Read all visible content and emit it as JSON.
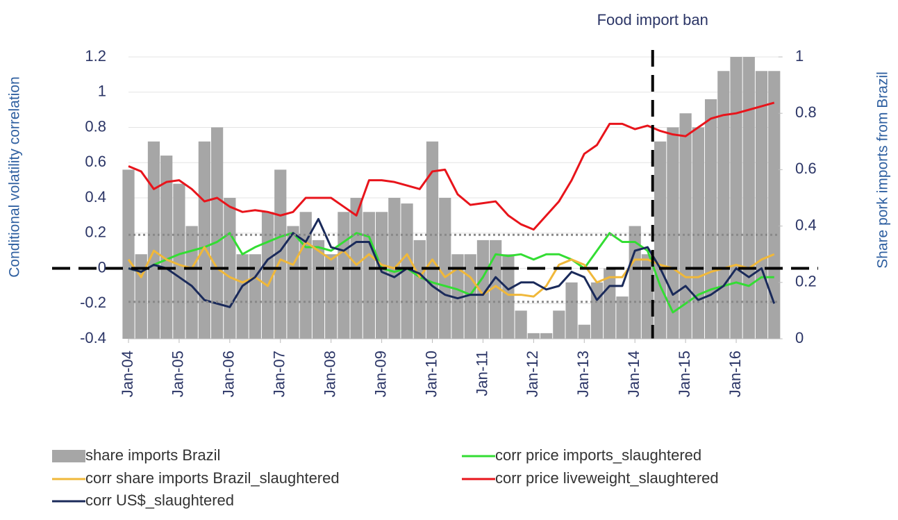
{
  "chart_data": {
    "type": "combo",
    "y_label": "Conditional volatility correlation",
    "y2_label": "Share pork imports from Brazil",
    "annotation": {
      "text": "Food import ban",
      "x": 41.4
    },
    "zero_line": true,
    "dotted_lines": [
      0.19,
      -0.19
    ],
    "grid": true,
    "legend": "bottom",
    "ylim": [
      -0.4,
      1.2
    ],
    "yticks": [
      -0.4,
      -0.2,
      0,
      0.2,
      0.4,
      0.6,
      0.8,
      1,
      1.2
    ],
    "y2lim": [
      0,
      1
    ],
    "y2ticks": [
      0,
      0.2,
      0.4,
      0.6,
      0.8,
      1
    ],
    "categories": [
      "Jan-04",
      null,
      null,
      null,
      "Jan-05",
      null,
      null,
      null,
      "Jan-06",
      null,
      null,
      null,
      "Jan-07",
      null,
      null,
      null,
      "Jan-08",
      null,
      null,
      null,
      "Jan-09",
      null,
      null,
      null,
      "Jan-10",
      null,
      null,
      null,
      "Jan-11",
      null,
      null,
      null,
      "Jan-12",
      null,
      null,
      null,
      "Jan-13",
      null,
      null,
      null,
      "Jan-14",
      null,
      null,
      null,
      "Jan-15",
      null,
      null,
      null,
      "Jan-16",
      null,
      null,
      null
    ],
    "series": [
      {
        "name": "share imports Brazil",
        "type": "bar",
        "axis": "y2",
        "color": "#a6a6a6",
        "values": [
          0.6,
          0.3,
          0.7,
          0.65,
          0.55,
          0.4,
          0.7,
          0.75,
          0.5,
          0.3,
          0.3,
          0.45,
          0.6,
          0.4,
          0.45,
          0.35,
          0.3,
          0.45,
          0.5,
          0.45,
          0.45,
          0.5,
          0.48,
          0.35,
          0.7,
          0.5,
          0.3,
          0.3,
          0.35,
          0.35,
          0.3,
          0.1,
          0.02,
          0.02,
          0.1,
          0.2,
          0.05,
          0.2,
          0.25,
          0.15,
          0.4,
          0.3,
          0.7,
          0.75,
          0.8,
          0.75,
          0.85,
          0.95,
          1.0,
          1.0,
          0.95,
          0.95
        ]
      },
      {
        "name": "corr price imports_slaughtered",
        "type": "line",
        "color": "#33dd33",
        "values": [
          0.0,
          -0.02,
          0.02,
          0.05,
          0.08,
          0.1,
          0.12,
          0.15,
          0.2,
          0.08,
          0.12,
          0.15,
          0.18,
          0.2,
          0.12,
          0.12,
          0.1,
          0.15,
          0.2,
          0.18,
          0.0,
          -0.02,
          0.0,
          -0.05,
          -0.08,
          -0.1,
          -0.12,
          -0.15,
          -0.05,
          0.08,
          0.07,
          0.08,
          0.05,
          0.08,
          0.08,
          0.05,
          0.0,
          0.1,
          0.2,
          0.15,
          0.15,
          0.1,
          -0.1,
          -0.25,
          -0.2,
          -0.15,
          -0.12,
          -0.1,
          -0.08,
          -0.1,
          -0.05,
          -0.05
        ]
      },
      {
        "name": "corr share imports Brazil_slaughtered",
        "type": "line",
        "color": "#f0b83a",
        "values": [
          0.05,
          -0.05,
          0.1,
          0.05,
          0.02,
          0.0,
          0.12,
          0.0,
          -0.05,
          -0.08,
          -0.05,
          -0.1,
          0.05,
          0.02,
          0.15,
          0.1,
          0.05,
          0.1,
          0.02,
          0.08,
          0.02,
          0.0,
          0.08,
          -0.05,
          0.05,
          -0.05,
          0.0,
          -0.05,
          -0.15,
          -0.1,
          -0.15,
          -0.15,
          -0.16,
          -0.1,
          0.02,
          0.05,
          0.02,
          -0.08,
          -0.05,
          -0.05,
          0.05,
          0.05,
          0.02,
          0.0,
          -0.05,
          -0.05,
          -0.02,
          0.0,
          0.02,
          0.0,
          0.05,
          0.08
        ]
      },
      {
        "name": "corr price liveweight_slaughtered",
        "type": "line",
        "color": "#e8141b",
        "values": [
          0.58,
          0.55,
          0.45,
          0.49,
          0.5,
          0.45,
          0.38,
          0.4,
          0.35,
          0.32,
          0.33,
          0.32,
          0.3,
          0.32,
          0.4,
          0.4,
          0.4,
          0.35,
          0.3,
          0.5,
          0.5,
          0.49,
          0.47,
          0.45,
          0.55,
          0.56,
          0.42,
          0.36,
          0.37,
          0.38,
          0.3,
          0.25,
          0.22,
          0.3,
          0.38,
          0.5,
          0.65,
          0.7,
          0.82,
          0.82,
          0.79,
          0.81,
          0.78,
          0.76,
          0.75,
          0.8,
          0.85,
          0.87,
          0.88,
          0.9,
          0.92,
          0.94
        ]
      },
      {
        "name": "corr US$_slaughtered",
        "type": "line",
        "color": "#1a2a5a",
        "values": [
          0.0,
          -0.02,
          0.02,
          0.0,
          -0.05,
          -0.1,
          -0.18,
          -0.2,
          -0.22,
          -0.1,
          -0.05,
          0.05,
          0.1,
          0.2,
          0.15,
          0.28,
          0.12,
          0.1,
          0.15,
          0.15,
          -0.02,
          -0.05,
          0.0,
          -0.03,
          -0.1,
          -0.15,
          -0.17,
          -0.15,
          -0.15,
          -0.05,
          -0.12,
          -0.08,
          -0.08,
          -0.12,
          -0.1,
          -0.02,
          -0.05,
          -0.18,
          -0.1,
          -0.1,
          0.1,
          0.12,
          0.0,
          -0.15,
          -0.1,
          -0.18,
          -0.15,
          -0.1,
          0.0,
          -0.05,
          0.0,
          -0.2
        ]
      }
    ]
  }
}
